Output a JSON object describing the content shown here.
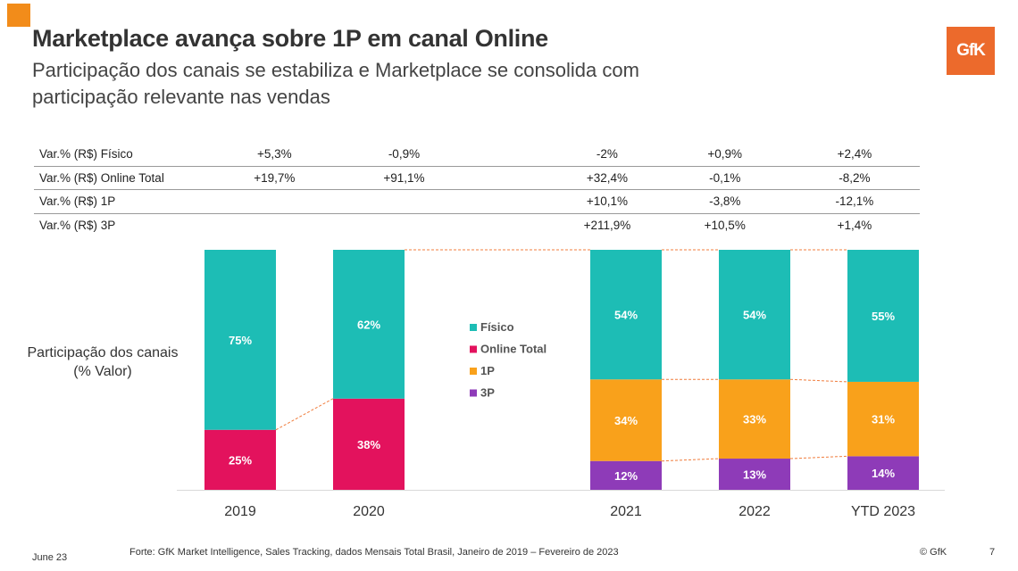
{
  "header": {
    "title": "Marketplace avança sobre 1P em canal Online",
    "subtitle": "Participação dos canais se estabiliza e Marketplace se consolida com participação relevante nas vendas",
    "logo": "GfK"
  },
  "variation_table": {
    "rows": [
      {
        "label": "Var.% (R$) Físico",
        "values": [
          "+5,3%",
          "-0,9%",
          "-2%",
          "+0,9%",
          "+2,4%"
        ]
      },
      {
        "label": "Var.% (R$) Online Total",
        "values": [
          "+19,7%",
          "+91,1%",
          "+32,4%",
          "-0,1%",
          "-8,2%"
        ]
      },
      {
        "label": "Var.% (R$) 1P",
        "values": [
          "",
          "",
          "+10,1%",
          "-3,8%",
          "-12,1%"
        ]
      },
      {
        "label": "Var.% (R$) 3P",
        "values": [
          "",
          "",
          "+211,9%",
          "+10,5%",
          "+1,4%"
        ]
      }
    ]
  },
  "side_label": {
    "line1": "Participação dos canais",
    "line2": "(% Valor)"
  },
  "chart_data": {
    "type": "bar",
    "stacked": true,
    "categories": [
      "2019",
      "2020",
      "2021",
      "2022",
      "YTD 2023"
    ],
    "series": [
      {
        "name": "3P",
        "color": "#8e3bb8",
        "values": [
          null,
          null,
          12,
          13,
          14
        ]
      },
      {
        "name": "1P",
        "color": "#f9a11b",
        "values": [
          null,
          null,
          34,
          33,
          31
        ]
      },
      {
        "name": "Online Total",
        "color": "#e3125d",
        "values": [
          25,
          38,
          null,
          null,
          null
        ]
      },
      {
        "name": "Físico",
        "color": "#1dbdb5",
        "values": [
          75,
          62,
          54,
          54,
          55
        ]
      }
    ],
    "legend": {
      "position": "center",
      "entries": [
        "Físico",
        "Online Total",
        "1P",
        "3P"
      ]
    },
    "ylim": [
      0,
      100
    ],
    "ylabel": "Participação dos canais (% Valor)",
    "xlabel": ""
  },
  "footer": {
    "date": "June 23",
    "source": "Forte: GfK Market Intelligence, Sales Tracking, dados Mensais Total Brasil, Janeiro de 2019 – Fevereiro de 2023",
    "copyright": "© GfK",
    "page": "7"
  }
}
